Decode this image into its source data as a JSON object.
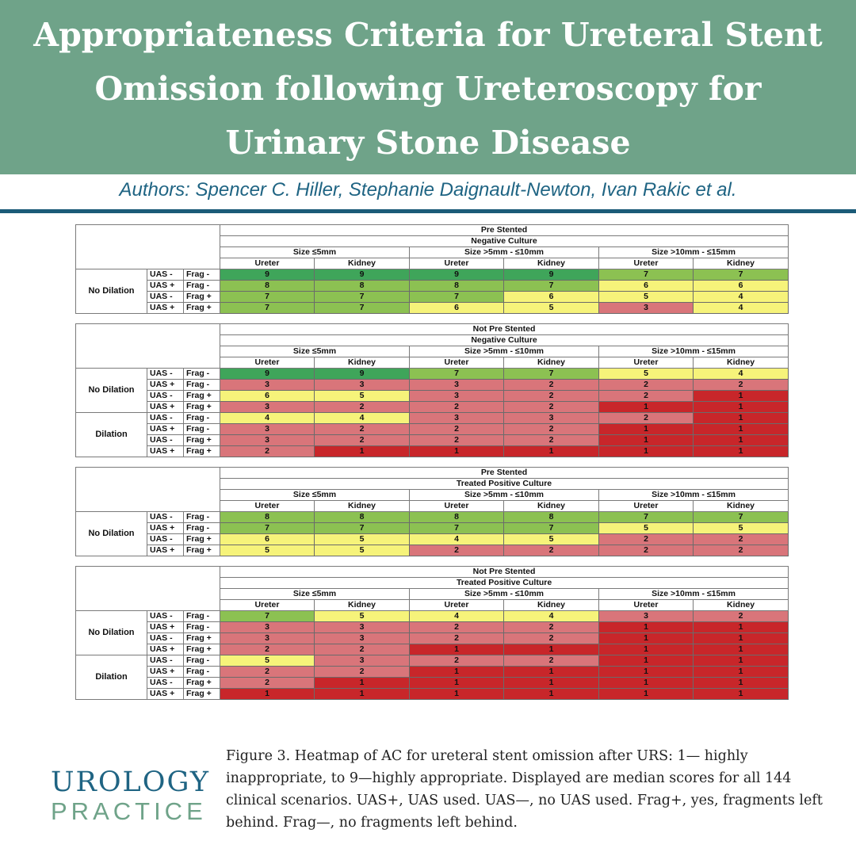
{
  "header": {
    "title": "Appropriateness Criteria for Ureteral Stent Omission following Ureteroscopy for Urinary Stone Disease",
    "authors": "Authors: Spencer C. Hiller, Stephanie Daignault-Newton, Ivan Rakic et al."
  },
  "logo": {
    "line1": "UROLOGY",
    "line2": "PRACTICE"
  },
  "caption": "Figure 3. Heatmap of AC for ureteral stent omission after URS: 1— highly inappropriate, to 9—highly appropriate. Displayed are median scores for all 144 clinical scenarios. UAS+, UAS used. UAS—, no UAS used. Frag+, yes, fragments left behind. Frag—, no fragments left behind.",
  "colors": {
    "1": "#c8262a",
    "2": "#d9757a",
    "3": "#d9757a",
    "4": "#f6f37a",
    "5": "#f6f37a",
    "6": "#f6f37a",
    "7": "#8cc152",
    "8": "#8cc152",
    "9": "#3fa55a"
  },
  "chart_data": {
    "type": "heatmap",
    "value_range": [
      1,
      9
    ],
    "size_columns": [
      "Size ≤5mm",
      "Size >5mm - ≤10mm",
      "Size >10mm - ≤15mm"
    ],
    "location_columns": [
      "Ureter",
      "Kidney",
      "Ureter",
      "Kidney",
      "Ureter",
      "Kidney"
    ],
    "blocks": [
      {
        "stent": "Pre Stented",
        "culture": "Negative Culture",
        "groups": [
          {
            "name": "No Dilation",
            "rows": [
              {
                "uas": "UAS -",
                "frag": "Frag -",
                "values": [
                  9,
                  9,
                  9,
                  9,
                  7,
                  7
                ]
              },
              {
                "uas": "UAS +",
                "frag": "Frag -",
                "values": [
                  8,
                  8,
                  8,
                  7,
                  6,
                  6
                ]
              },
              {
                "uas": "UAS -",
                "frag": "Frag +",
                "values": [
                  7,
                  7,
                  7,
                  6,
                  5,
                  4
                ]
              },
              {
                "uas": "UAS +",
                "frag": "Frag +",
                "values": [
                  7,
                  7,
                  6,
                  5,
                  3,
                  4
                ]
              }
            ]
          }
        ]
      },
      {
        "stent": "Not Pre Stented",
        "culture": "Negative Culture",
        "groups": [
          {
            "name": "No Dilation",
            "rows": [
              {
                "uas": "UAS -",
                "frag": "Frag -",
                "values": [
                  9,
                  9,
                  7,
                  7,
                  5,
                  4
                ]
              },
              {
                "uas": "UAS +",
                "frag": "Frag -",
                "values": [
                  3,
                  3,
                  3,
                  2,
                  2,
                  2
                ]
              },
              {
                "uas": "UAS -",
                "frag": "Frag +",
                "values": [
                  6,
                  5,
                  3,
                  2,
                  2,
                  1
                ]
              },
              {
                "uas": "UAS +",
                "frag": "Frag +",
                "values": [
                  3,
                  2,
                  2,
                  2,
                  1,
                  1
                ]
              }
            ]
          },
          {
            "name": "Dilation",
            "rows": [
              {
                "uas": "UAS -",
                "frag": "Frag -",
                "values": [
                  4,
                  4,
                  3,
                  3,
                  2,
                  1
                ]
              },
              {
                "uas": "UAS +",
                "frag": "Frag -",
                "values": [
                  3,
                  2,
                  2,
                  2,
                  1,
                  1
                ]
              },
              {
                "uas": "UAS -",
                "frag": "Frag +",
                "values": [
                  3,
                  2,
                  2,
                  2,
                  1,
                  1
                ]
              },
              {
                "uas": "UAS +",
                "frag": "Frag +",
                "values": [
                  2,
                  1,
                  1,
                  1,
                  1,
                  1
                ]
              }
            ]
          }
        ]
      },
      {
        "stent": "Pre Stented",
        "culture": "Treated Positive Culture",
        "groups": [
          {
            "name": "No Dilation",
            "rows": [
              {
                "uas": "UAS -",
                "frag": "Frag -",
                "values": [
                  8,
                  8,
                  8,
                  8,
                  7,
                  7
                ]
              },
              {
                "uas": "UAS +",
                "frag": "Frag -",
                "values": [
                  7,
                  7,
                  7,
                  7,
                  5,
                  5
                ]
              },
              {
                "uas": "UAS -",
                "frag": "Frag +",
                "values": [
                  6,
                  5,
                  4,
                  5,
                  2,
                  2
                ]
              },
              {
                "uas": "UAS +",
                "frag": "Frag +",
                "values": [
                  5,
                  5,
                  2,
                  2,
                  2,
                  2
                ]
              }
            ]
          }
        ]
      },
      {
        "stent": "Not Pre Stented",
        "culture": "Treated Positive Culture",
        "groups": [
          {
            "name": "No Dilation",
            "rows": [
              {
                "uas": "UAS -",
                "frag": "Frag -",
                "values": [
                  7,
                  5,
                  4,
                  4,
                  3,
                  2
                ]
              },
              {
                "uas": "UAS +",
                "frag": "Frag -",
                "values": [
                  3,
                  3,
                  2,
                  2,
                  1,
                  1
                ]
              },
              {
                "uas": "UAS -",
                "frag": "Frag +",
                "values": [
                  3,
                  3,
                  2,
                  2,
                  1,
                  1
                ]
              },
              {
                "uas": "UAS +",
                "frag": "Frag +",
                "values": [
                  2,
                  2,
                  1,
                  1,
                  1,
                  1
                ]
              }
            ]
          },
          {
            "name": "Dilation",
            "rows": [
              {
                "uas": "UAS -",
                "frag": "Frag -",
                "values": [
                  5,
                  3,
                  2,
                  2,
                  1,
                  1
                ]
              },
              {
                "uas": "UAS +",
                "frag": "Frag -",
                "values": [
                  2,
                  2,
                  1,
                  1,
                  1,
                  1
                ]
              },
              {
                "uas": "UAS -",
                "frag": "Frag +",
                "values": [
                  2,
                  1,
                  1,
                  1,
                  1,
                  1
                ]
              },
              {
                "uas": "UAS +",
                "frag": "Frag +",
                "values": [
                  1,
                  1,
                  1,
                  1,
                  1,
                  1
                ]
              }
            ]
          }
        ]
      }
    ]
  }
}
